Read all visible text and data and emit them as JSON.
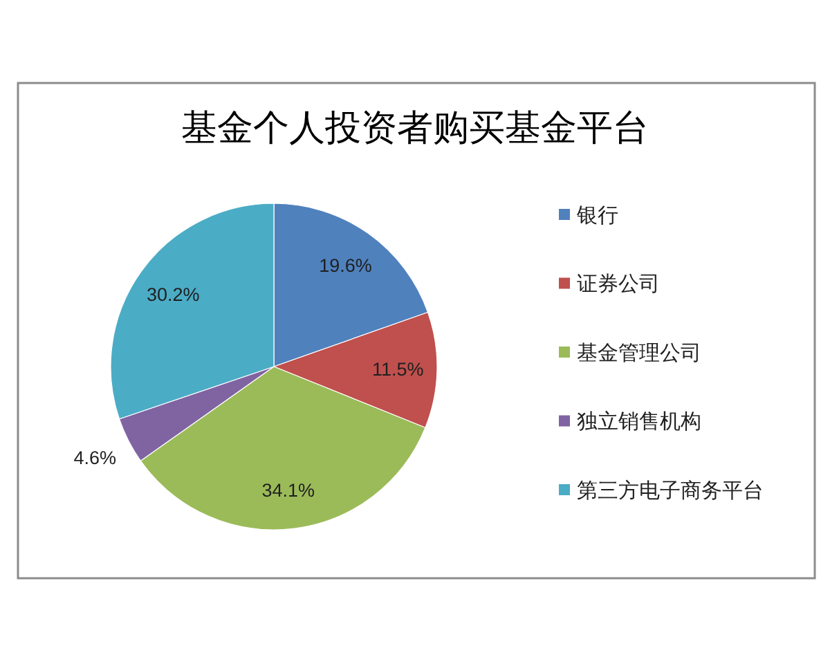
{
  "chart_data": {
    "type": "pie",
    "title": "基金个人投资者购买基金平台",
    "categories": [
      "银行",
      "证券公司",
      "基金管理公司",
      "独立销售机构",
      "第三方电子商务平台"
    ],
    "values": [
      19.6,
      11.5,
      34.1,
      4.6,
      30.2
    ],
    "value_labels": [
      "19.6%",
      "11.5%",
      "34.1%",
      "4.6%",
      "30.2%"
    ],
    "colors": [
      "#4f81bd",
      "#c0504d",
      "#9bbb59",
      "#8064a2",
      "#4bacc6"
    ],
    "legend": "right"
  }
}
